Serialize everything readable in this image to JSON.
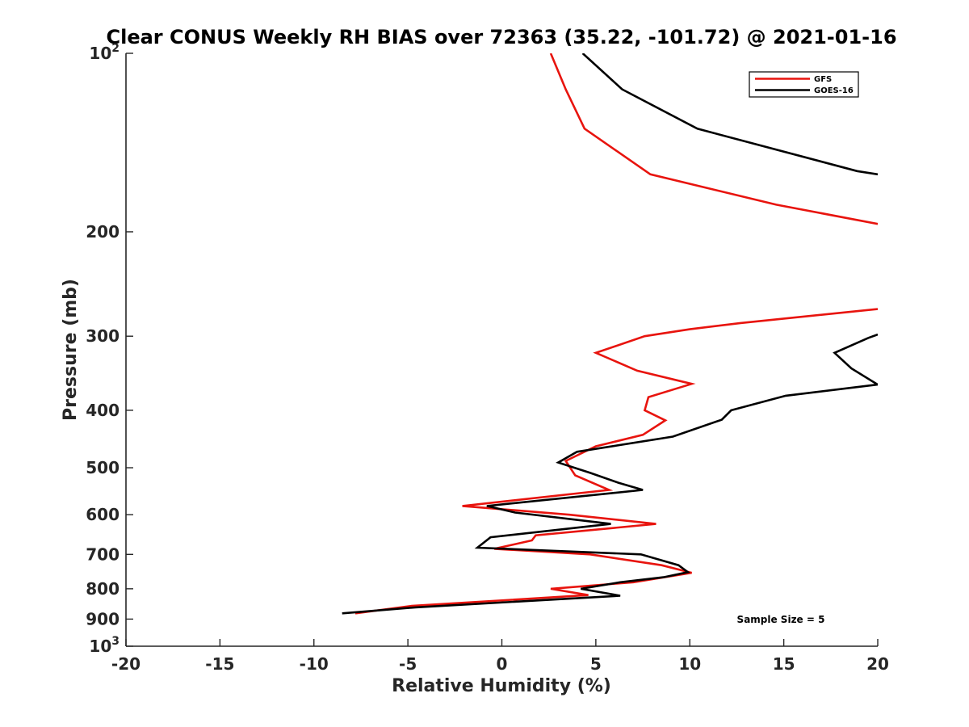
{
  "chart_data": {
    "type": "line",
    "title": "Clear CONUS Weekly RH BIAS over 72363 (35.22, -101.72) @ 2021-01-16",
    "xlabel": "Relative Humidity (%)",
    "ylabel": "Pressure (mb)",
    "xlim": [
      -20,
      20
    ],
    "ylim": [
      100,
      1000
    ],
    "yscale": "log",
    "y_reversed": true,
    "x_ticks": [
      -20,
      -15,
      -10,
      -5,
      0,
      5,
      10,
      15,
      20
    ],
    "x_tick_labels": [
      "-20",
      "-15",
      "-10",
      "-5",
      "0",
      "5",
      "10",
      "15",
      "20"
    ],
    "y_ticks": [
      100,
      200,
      300,
      400,
      500,
      600,
      700,
      800,
      900,
      1000
    ],
    "y_tick_labels": [
      "10^2",
      "200",
      "300",
      "400",
      "500",
      "600",
      "700",
      "800",
      "900",
      "10^3"
    ],
    "grid": false,
    "legend": "top-right",
    "annotation": "Sample Size = 5",
    "series": [
      {
        "name": "GFS",
        "color": "#e8140e",
        "segments": [
          [
            [
              2.6,
              100
            ],
            [
              3.4,
              115
            ],
            [
              4.4,
              134
            ],
            [
              7.9,
              160
            ],
            [
              14.6,
              180
            ],
            [
              20.0,
              194
            ]
          ],
          [
            [
              20.0,
              270
            ],
            [
              12.7,
              285
            ],
            [
              10.0,
              292
            ],
            [
              7.6,
              300
            ],
            [
              5.0,
              320
            ],
            [
              7.2,
              343
            ],
            [
              10.1,
              361
            ],
            [
              7.8,
              380
            ],
            [
              7.6,
              400
            ],
            [
              8.7,
              416
            ],
            [
              7.5,
              440
            ],
            [
              5.0,
              460
            ],
            [
              3.4,
              487
            ],
            [
              3.9,
              515
            ],
            [
              5.7,
              545
            ],
            [
              -2.1,
              580
            ],
            [
              3.6,
              600
            ],
            [
              8.2,
              622
            ],
            [
              1.8,
              650
            ],
            [
              1.6,
              663
            ],
            [
              -0.4,
              685
            ],
            [
              4.7,
              700
            ],
            [
              8.5,
              730
            ],
            [
              10.1,
              752
            ],
            [
              7.0,
              780
            ],
            [
              2.6,
              800
            ],
            [
              4.6,
              820
            ],
            [
              -4.8,
              855
            ],
            [
              -7.8,
              880
            ]
          ]
        ]
      },
      {
        "name": "GOES-16",
        "color": "#000000",
        "segments": [
          [
            [
              4.3,
              100
            ],
            [
              6.4,
              115
            ],
            [
              10.4,
              134
            ],
            [
              18.9,
              158
            ],
            [
              20.0,
              160
            ]
          ],
          [
            [
              20.0,
              298
            ],
            [
              19.5,
              302
            ],
            [
              17.7,
              320
            ],
            [
              18.6,
              340
            ],
            [
              20.0,
              362
            ],
            [
              15.1,
              378
            ],
            [
              12.2,
              400
            ],
            [
              11.7,
              415
            ],
            [
              9.1,
              443
            ],
            [
              4.0,
              470
            ],
            [
              3.0,
              490
            ],
            [
              4.7,
              510
            ],
            [
              6.2,
              530
            ],
            [
              7.5,
              545
            ],
            [
              -0.8,
              580
            ],
            [
              0.7,
              595
            ],
            [
              5.8,
              622
            ],
            [
              -0.6,
              655
            ],
            [
              -1.3,
              682
            ],
            [
              7.4,
              700
            ],
            [
              9.4,
              730
            ],
            [
              9.9,
              750
            ],
            [
              8.6,
              765
            ],
            [
              6.3,
              780
            ],
            [
              4.2,
              800
            ],
            [
              6.3,
              822
            ],
            [
              -4.6,
              860
            ],
            [
              -8.5,
              880
            ]
          ]
        ]
      }
    ]
  }
}
